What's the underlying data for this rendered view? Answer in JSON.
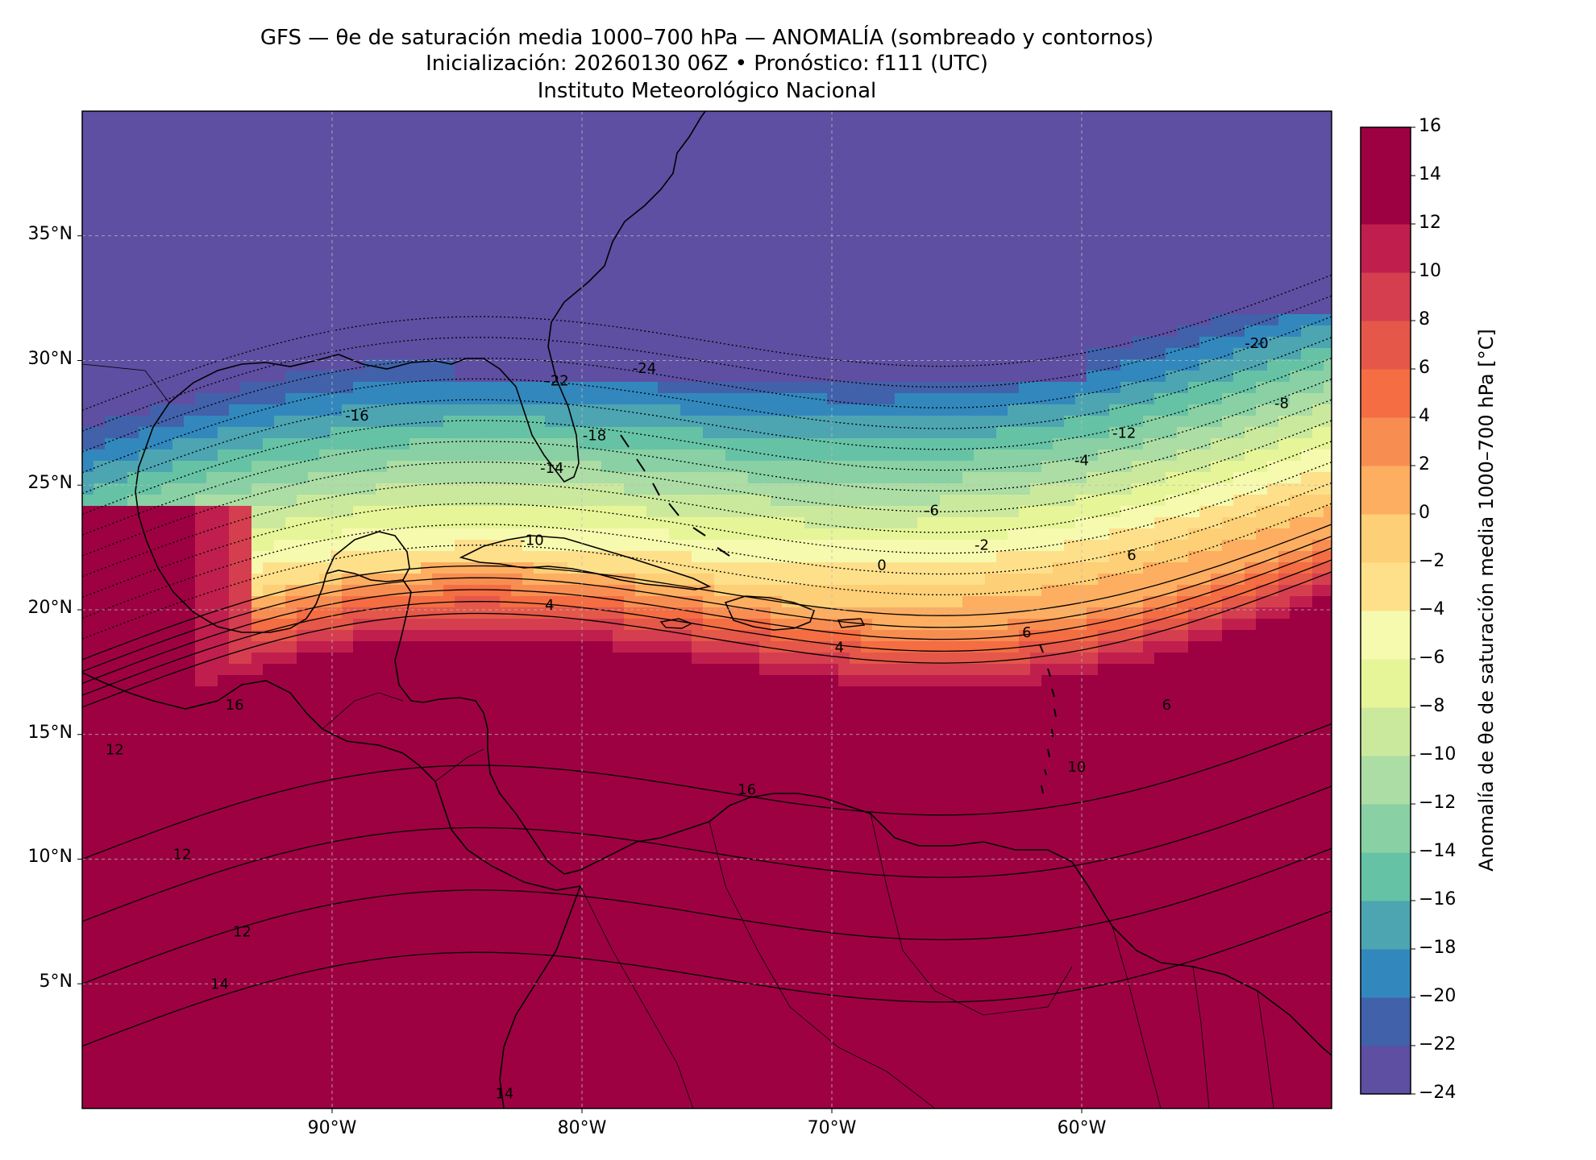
{
  "title": {
    "line1": "GFS — θe de saturación media 1000–700 hPa — ANOMALÍA (sombreado y contornos)",
    "line2": "Inicialización: 20260130 06Z   •   Pronóstico: f111 (UTC)",
    "line3": "Instituto Meteorológico Nacional"
  },
  "map": {
    "extent": {
      "lon_min": -100,
      "lon_max": -50,
      "lat_min": 0,
      "lat_max": 40
    },
    "lat_ticks": [
      "35°N",
      "30°N",
      "25°N",
      "20°N",
      "15°N",
      "10°N",
      "5°N"
    ],
    "lon_ticks": [
      "90°W",
      "80°W",
      "70°W",
      "60°W"
    ],
    "gridlines": true,
    "coastlines": true,
    "borders": true
  },
  "colorbar": {
    "label": "Anomalía de θe de saturación media 1000–700 hPa [°C]",
    "ticks": [
      "16",
      "14",
      "12",
      "10",
      "8",
      "6",
      "4",
      "2",
      "0",
      "−2",
      "−4",
      "−6",
      "−8",
      "−10",
      "−12",
      "−14",
      "−16",
      "−18",
      "−20",
      "−22",
      "−24"
    ],
    "range": [
      -24,
      16
    ],
    "step": 2,
    "colors": [
      "#5e4fa2",
      "#4261ab",
      "#3288bd",
      "#4da5b1",
      "#66c2a5",
      "#89d0a4",
      "#abdda4",
      "#cbe99d",
      "#e6f598",
      "#f6faae",
      "#fee08b",
      "#fdcf76",
      "#fdae61",
      "#f88d52",
      "#f46d43",
      "#e55749",
      "#d53e4f",
      "#c01f4e",
      "#9e0142",
      "#9e0142"
    ]
  },
  "chart_data": {
    "type": "heatmap",
    "variable": "Anomalía de θe de saturación media 1000–700 hPa [°C]",
    "lon_range": [
      -100,
      -50
    ],
    "lat_range": [
      0,
      40
    ],
    "contour_labels": [
      {
        "value": -24,
        "lon": -77.5,
        "lat": 29.5
      },
      {
        "value": -22,
        "lon": -81.0,
        "lat": 29.0
      },
      {
        "value": -20,
        "lon": -53.0,
        "lat": 30.5
      },
      {
        "value": -18,
        "lon": -79.5,
        "lat": 26.8
      },
      {
        "value": -16,
        "lon": -89.0,
        "lat": 27.6
      },
      {
        "value": -14,
        "lon": -81.2,
        "lat": 25.5
      },
      {
        "value": -12,
        "lon": -58.3,
        "lat": 26.9
      },
      {
        "value": -10,
        "lon": -82.0,
        "lat": 22.6
      },
      {
        "value": -8,
        "lon": -52.0,
        "lat": 28.1
      },
      {
        "value": -6,
        "lon": -66.0,
        "lat": 23.8
      },
      {
        "value": -4,
        "lon": -60.0,
        "lat": 25.8
      },
      {
        "value": -2,
        "lon": -64.0,
        "lat": 22.4
      },
      {
        "value": 0,
        "lon": -68.0,
        "lat": 21.6
      },
      {
        "value": 4,
        "lon": -81.3,
        "lat": 20.0
      },
      {
        "value": 4,
        "lon": -69.7,
        "lat": 18.3
      },
      {
        "value": 6,
        "lon": -62.2,
        "lat": 18.9
      },
      {
        "value": 6,
        "lon": -58.0,
        "lat": 22.0
      },
      {
        "value": 6,
        "lon": -56.6,
        "lat": 16.0
      },
      {
        "value": 10,
        "lon": -60.2,
        "lat": 13.5
      },
      {
        "value": 12,
        "lon": -98.7,
        "lat": 14.2
      },
      {
        "value": 12,
        "lon": -96.0,
        "lat": 10.0
      },
      {
        "value": 12,
        "lon": -93.6,
        "lat": 6.9
      },
      {
        "value": 14,
        "lon": -94.5,
        "lat": 4.8
      },
      {
        "value": 14,
        "lon": -83.1,
        "lat": 0.4
      },
      {
        "value": 16,
        "lon": -93.9,
        "lat": 16.0
      },
      {
        "value": 16,
        "lon": -73.4,
        "lat": 12.6
      }
    ]
  }
}
